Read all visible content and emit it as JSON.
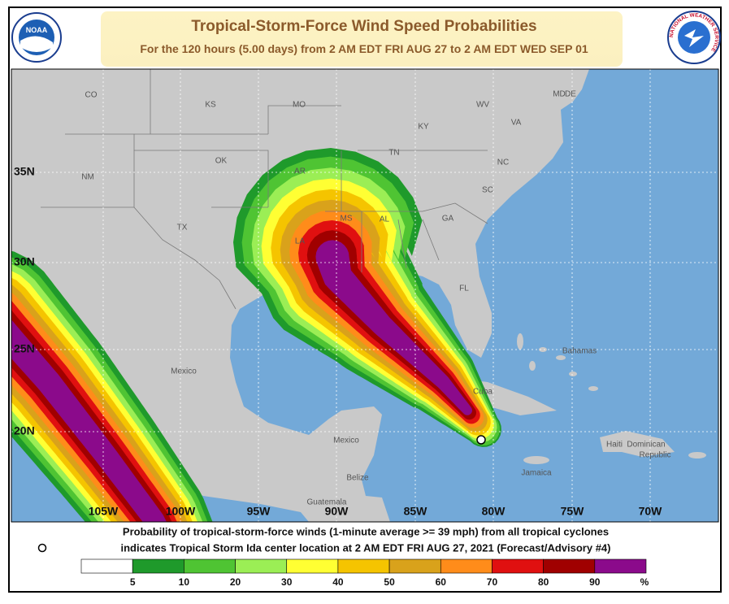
{
  "header": {
    "title": "Tropical-Storm-Force Wind Speed Probabilities",
    "subtitle": "For the 120 hours (5.00 days) from 2 AM EDT FRI AUG 27 to 2 AM EDT WED SEP 01"
  },
  "logos": {
    "left": "NOAA",
    "right": "NATIONAL WEATHER SERVICE"
  },
  "map": {
    "place_labels": [
      "CO",
      "KS",
      "MO",
      "KY",
      "WV",
      "VA",
      "MD",
      "DE",
      "TN",
      "NC",
      "OK",
      "AR",
      "NM",
      "SC",
      "TX",
      "MS",
      "AL",
      "GA",
      "LA",
      "FL",
      "Mexico",
      "Mexico",
      "Bahamas",
      "Cuba",
      "Haiti",
      "Dominican",
      "Republic",
      "Jamaica",
      "Belize",
      "Guatemala"
    ],
    "lat_labels": [
      "35N",
      "30N",
      "25N",
      "20N"
    ],
    "lon_labels": [
      "105W",
      "100W",
      "95W",
      "90W",
      "85W",
      "80W",
      "75W",
      "70W"
    ]
  },
  "footer": {
    "line1": "Probability of tropical-storm-force winds (1-minute average >= 39 mph) from all tropical cyclones",
    "line2": "indicates Tropical Storm Ida center location at 2 AM EDT FRI AUG 27, 2021 (Forecast/Advisory #4)"
  },
  "legend": {
    "colors": [
      "#ffffff",
      "#1f9a2b",
      "#4fc433",
      "#9bee55",
      "#ffff33",
      "#f5c400",
      "#d9a21b",
      "#ff8c1a",
      "#e01010",
      "#a00000",
      "#8b0a8b"
    ],
    "labels": [
      "5",
      "10",
      "20",
      "30",
      "40",
      "50",
      "60",
      "70",
      "80",
      "90"
    ],
    "unit": "%"
  }
}
